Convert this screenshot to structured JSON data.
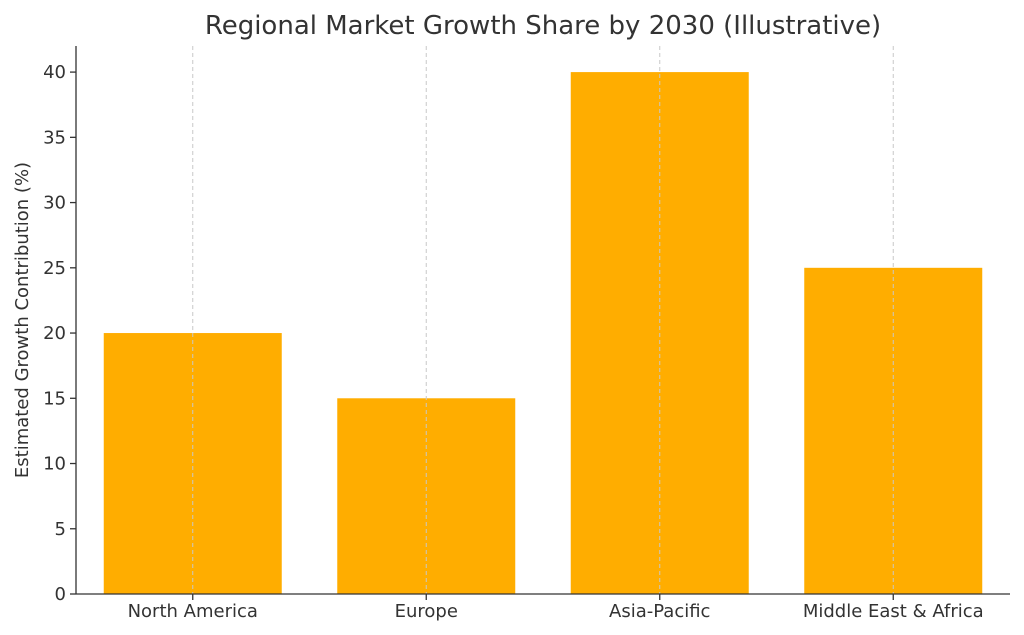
{
  "chart_data": {
    "type": "bar",
    "title": "Regional Market Growth Share by 2030 (Illustrative)",
    "xlabel": "",
    "ylabel": "Estimated Growth Contribution (%)",
    "categories": [
      "North America",
      "Europe",
      "Asia-Pacific",
      "Middle East & Africa"
    ],
    "values": [
      20,
      15,
      40,
      25
    ],
    "ylim": [
      0,
      42
    ],
    "yticks": [
      0,
      5,
      10,
      15,
      20,
      25,
      30,
      35,
      40
    ],
    "grid": "x-dashed",
    "bar_color": "#FFAD00",
    "legend": "none"
  }
}
